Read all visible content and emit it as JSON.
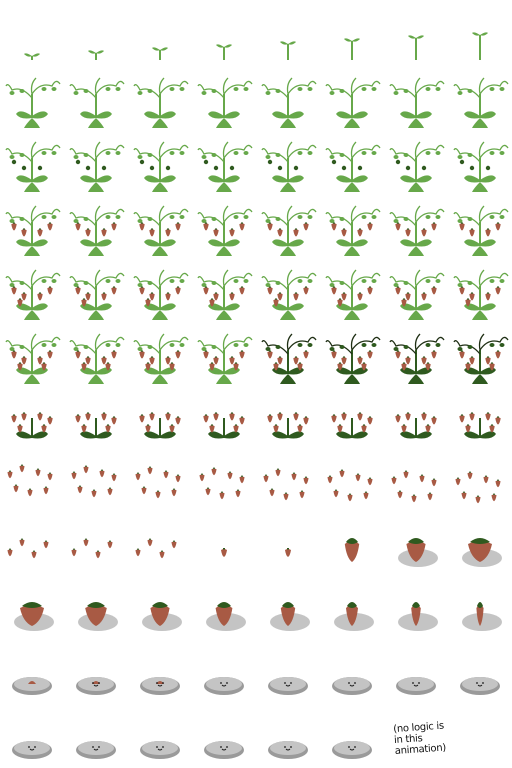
{
  "sheet": {
    "columns": 8,
    "rows": 12,
    "frame_count": 95,
    "phases": [
      "sprout",
      "growing",
      "vine",
      "flowering",
      "berries-ripening",
      "wilting",
      "falling-berries",
      "single-berry",
      "berry-melting",
      "berry-shrinking",
      "blob",
      "blob"
    ]
  },
  "colors": {
    "leaf_light": "#67a84a",
    "leaf_dark": "#2f5a1f",
    "berry": "#a85a44",
    "stem_dark": "#1f2f14",
    "blob": "#c4c4c4",
    "blob_shadow": "#9a9a9a",
    "face": "#1a1a1a"
  },
  "annotation": {
    "text": "(no logic is in this animation)",
    "icon": "handwritten-note"
  }
}
